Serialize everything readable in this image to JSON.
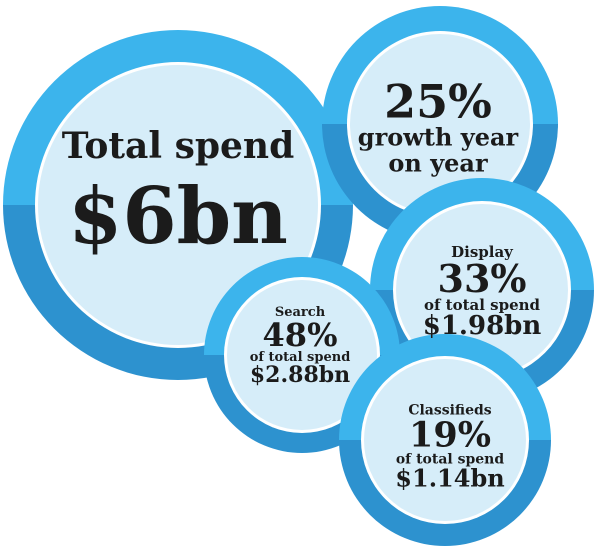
{
  "bubbles": [
    {
      "label": "Total spend",
      "value": "$6bn"
    },
    {
      "value": "25%",
      "label": "growth year on year"
    },
    {
      "label": "Display",
      "value": "33%",
      "note": "of total spend",
      "amount": "$1.98bn"
    },
    {
      "label": "Search",
      "value": "48%",
      "note": "of total spend",
      "amount": "$2.88bn"
    },
    {
      "label": "Classifieds",
      "value": "19%",
      "note": "of total spend",
      "amount": "$1.14bn"
    }
  ]
}
